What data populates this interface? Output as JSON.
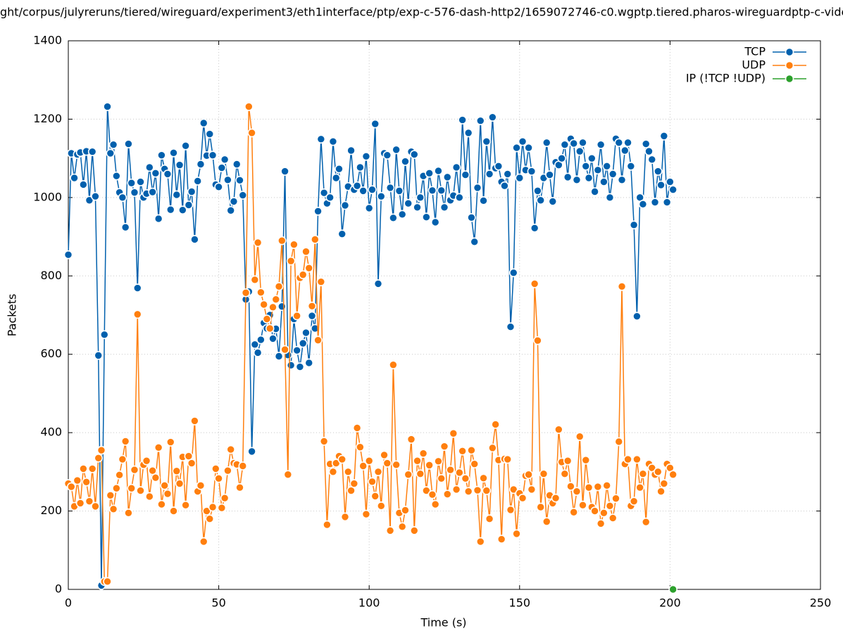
{
  "chart_data": {
    "type": "line",
    "title": "ght/corpus/julyreruns/tiered/wireguard/experiment3/eth1interface/ptp/exp-c-576-dash-http2/1659072746-c0.wgptp.tiered.pharos-wireguardptp-c-vide",
    "x_label": "Time (s)",
    "y_label": "Packets",
    "xlim": [
      0,
      250
    ],
    "xticks": [
      0,
      50,
      100,
      150,
      200,
      250
    ],
    "ylim": [
      0,
      1400
    ],
    "yticks": [
      0,
      200,
      400,
      600,
      800,
      1000,
      1200,
      1400
    ],
    "grid": true,
    "legend": "top-right",
    "x": [
      0,
      1,
      2,
      3,
      4,
      5,
      6,
      7,
      8,
      9,
      10,
      11,
      12,
      13,
      14,
      15,
      16,
      17,
      18,
      19,
      20,
      21,
      22,
      23,
      24,
      25,
      26,
      27,
      28,
      29,
      30,
      31,
      32,
      33,
      34,
      35,
      36,
      37,
      38,
      39,
      40,
      41,
      42,
      43,
      44,
      45,
      46,
      47,
      48,
      49,
      50,
      51,
      52,
      53,
      54,
      55,
      56,
      57,
      58,
      59,
      60,
      61,
      62,
      63,
      64,
      65,
      66,
      67,
      68,
      69,
      70,
      71,
      72,
      73,
      74,
      75,
      76,
      77,
      78,
      79,
      80,
      81,
      82,
      83,
      84,
      85,
      86,
      87,
      88,
      89,
      90,
      91,
      92,
      93,
      94,
      95,
      96,
      97,
      98,
      99,
      100,
      101,
      102,
      103,
      104,
      105,
      106,
      107,
      108,
      109,
      110,
      111,
      112,
      113,
      114,
      115,
      116,
      117,
      118,
      119,
      120,
      121,
      122,
      123,
      124,
      125,
      126,
      127,
      128,
      129,
      130,
      131,
      132,
      133,
      134,
      135,
      136,
      137,
      138,
      139,
      140,
      141,
      142,
      143,
      144,
      145,
      146,
      147,
      148,
      149,
      150,
      151,
      152,
      153,
      154,
      155,
      156,
      157,
      158,
      159,
      160,
      161,
      162,
      163,
      164,
      165,
      166,
      167,
      168,
      169,
      170,
      171,
      172,
      173,
      174,
      175,
      176,
      177,
      178,
      179,
      180,
      181,
      182,
      183,
      184,
      185,
      186,
      187,
      188,
      189,
      190,
      191,
      192,
      193,
      194,
      195,
      196,
      197,
      198,
      199,
      200,
      201
    ],
    "series": [
      {
        "name": "TCP",
        "color": "#0060ad",
        "values": [
          854,
          1113,
          1050,
          1110,
          1115,
          1033,
          1118,
          993,
          1117,
          1003,
          597,
          10,
          650,
          1232,
          1113,
          1135,
          1055,
          1013,
          1000,
          924,
          1137,
          1037,
          1013,
          769,
          1040,
          1000,
          1010,
          1077,
          1014,
          1062,
          946,
          1108,
          1073,
          1060,
          969,
          1114,
          1007,
          1083,
          968,
          1132,
          981,
          1015,
          893,
          1042,
          1085,
          1190,
          1107,
          1162,
          1108,
          1033,
          1027,
          1076,
          1097,
          1045,
          967,
          990,
          1085,
          1044,
          1006,
          740,
          760,
          352,
          625,
          604,
          637,
          680,
          666,
          700,
          640,
          665,
          595,
          722,
          1067,
          598,
          572,
          690,
          610,
          568,
          628,
          655,
          578,
          698,
          666,
          965,
          1149,
          1012,
          985,
          1000,
          1143,
          1050,
          1073,
          907,
          980,
          1028,
          1120,
          1020,
          1030,
          1077,
          1017,
          1105,
          973,
          1020,
          1188,
          780,
          1003,
          1113,
          1108,
          1025,
          948,
          1122,
          1017,
          957,
          1092,
          985,
          1117,
          1110,
          975,
          1000,
          1055,
          950,
          1062,
          1018,
          937,
          1068,
          1018,
          975,
          1052,
          993,
          1005,
          1077,
          1000,
          1198,
          1058,
          1165,
          949,
          887,
          1025,
          1196,
          992,
          1143,
          1060,
          1205,
          1075,
          1080,
          1040,
          1030,
          1060,
          670,
          808,
          1127,
          1050,
          1143,
          1070,
          1127,
          1067,
          922,
          1017,
          993,
          1050,
          1140,
          1058,
          990,
          1090,
          1083,
          1100,
          1135,
          1052,
          1150,
          1138,
          1045,
          1118,
          1140,
          1080,
          1050,
          1100,
          1015,
          1070,
          1135,
          1040,
          1080,
          1000,
          1060,
          1150,
          1140,
          1045,
          1120,
          1140,
          1080,
          930,
          697,
          1000,
          983,
          1137,
          1118,
          1097,
          988,
          1067,
          1032,
          1157,
          988,
          1040,
          1020
        ]
      },
      {
        "name": "UDP",
        "color": "#ff7f0e",
        "values": [
          270,
          262,
          212,
          278,
          220,
          308,
          274,
          225,
          308,
          212,
          335,
          355,
          20,
          20,
          240,
          205,
          258,
          292,
          332,
          378,
          195,
          258,
          305,
          702,
          252,
          318,
          328,
          237,
          303,
          285,
          362,
          217,
          265,
          244,
          376,
          200,
          302,
          270,
          338,
          215,
          340,
          322,
          430,
          250,
          265,
          122,
          200,
          180,
          210,
          308,
          283,
          208,
          233,
          303,
          357,
          322,
          319,
          260,
          315,
          757,
          1232,
          1165,
          790,
          885,
          758,
          727,
          690,
          666,
          720,
          740,
          773,
          890,
          612,
          293,
          838,
          880,
          698,
          795,
          803,
          862,
          820,
          723,
          893,
          636,
          785,
          378,
          165,
          320,
          300,
          322,
          340,
          332,
          185,
          300,
          252,
          270,
          412,
          363,
          315,
          192,
          328,
          275,
          238,
          300,
          213,
          343,
          322,
          150,
          573,
          318,
          195,
          160,
          202,
          293,
          383,
          150,
          328,
          295,
          347,
          252,
          317,
          242,
          217,
          327,
          283,
          365,
          243,
          305,
          398,
          255,
          298,
          353,
          283,
          250,
          355,
          320,
          253,
          122,
          284,
          252,
          180,
          361,
          421,
          330,
          128,
          333,
          332,
          203,
          255,
          142,
          245,
          233,
          290,
          293,
          255,
          780,
          635,
          210,
          295,
          173,
          240,
          220,
          233,
          408,
          325,
          295,
          328,
          263,
          197,
          250,
          390,
          215,
          330,
          260,
          210,
          200,
          262,
          168,
          195,
          265,
          213,
          182,
          232,
          377,
          773,
          320,
          332,
          213,
          225,
          332,
          260,
          295,
          172,
          320,
          310,
          293,
          300,
          250,
          270,
          320,
          310,
          293
        ]
      },
      {
        "name": "IP (!TCP  !UDP)",
        "color": "#2ca02c",
        "x": [
          201
        ],
        "values": [
          0
        ]
      }
    ]
  }
}
